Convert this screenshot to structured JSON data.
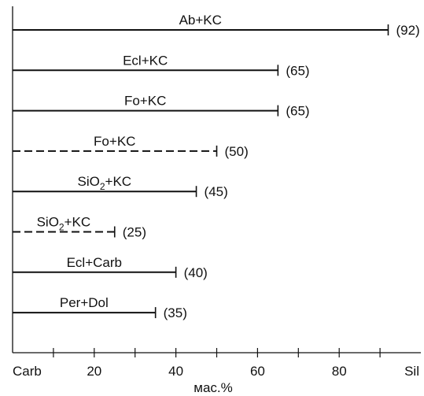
{
  "chart_data": {
    "type": "bar",
    "orientation": "horizontal",
    "xlim": [
      0,
      100
    ],
    "xlabel": "мас.%",
    "x_tick_values": [
      20,
      40,
      60,
      80
    ],
    "x_tick_labels": [
      "20",
      "40",
      "60",
      "80"
    ],
    "x_left_label": "Carb",
    "x_right_label": "Sil",
    "rows": [
      {
        "label_main": "Ab+KC",
        "label_sub": "",
        "label_tail": "",
        "value": 92,
        "value_label": "(92)",
        "dashed": false
      },
      {
        "label_main": "Ecl+KC",
        "label_sub": "",
        "label_tail": "",
        "value": 65,
        "value_label": "(65)",
        "dashed": false
      },
      {
        "label_main": "Fo+KC",
        "label_sub": "",
        "label_tail": "",
        "value": 65,
        "value_label": "(65)",
        "dashed": false
      },
      {
        "label_main": "Fo+KC",
        "label_sub": "",
        "label_tail": "",
        "value": 50,
        "value_label": "(50)",
        "dashed": true
      },
      {
        "label_main": "SiO",
        "label_sub": "2",
        "label_tail": "+KC",
        "value": 45,
        "value_label": "(45)",
        "dashed": false
      },
      {
        "label_main": "SiO",
        "label_sub": "2",
        "label_tail": "+KC",
        "value": 25,
        "value_label": "(25)",
        "dashed": true
      },
      {
        "label_main": "Ecl+Carb",
        "label_sub": "",
        "label_tail": "",
        "value": 40,
        "value_label": "(40)",
        "dashed": false
      },
      {
        "label_main": "Per+Dol",
        "label_sub": "",
        "label_tail": "",
        "value": 35,
        "value_label": "(35)",
        "dashed": false
      }
    ]
  }
}
